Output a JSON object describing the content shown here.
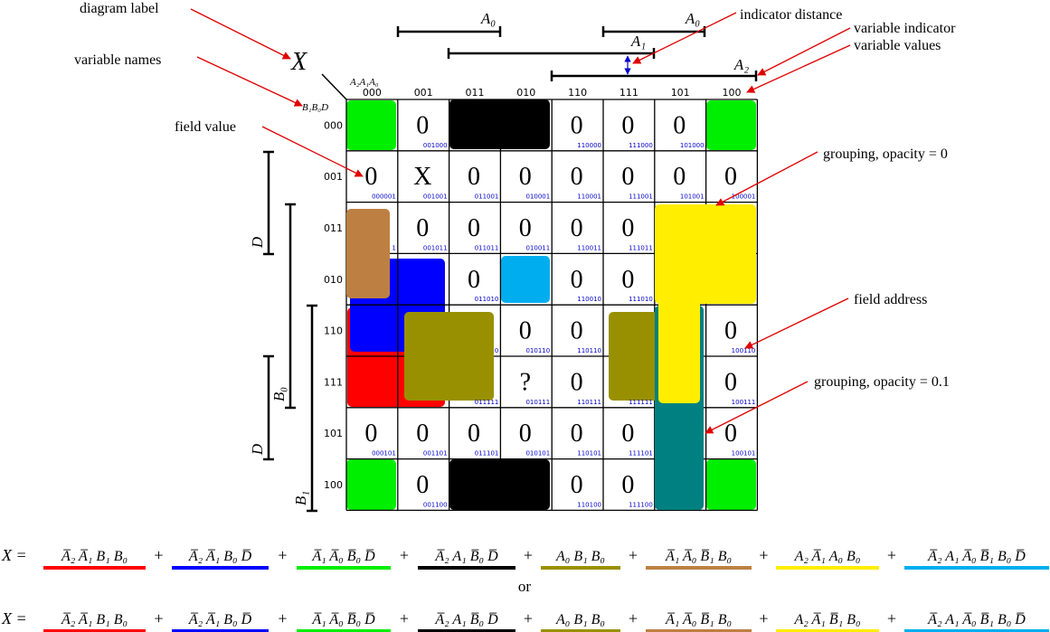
{
  "diagram_label": "X",
  "top_vars": "A₂A₁A₀",
  "left_vars": "B₁B₀D",
  "col_headers": [
    "000",
    "001",
    "011",
    "010",
    "110",
    "111",
    "101",
    "100"
  ],
  "row_headers": [
    "000",
    "001",
    "011",
    "010",
    "110",
    "111",
    "101",
    "100"
  ],
  "cells": [
    [
      "",
      "0",
      "",
      "",
      "0",
      "0",
      "0",
      ""
    ],
    [
      "0",
      "X",
      "0",
      "0",
      "0",
      "0",
      "0",
      "0"
    ],
    [
      "",
      "0",
      "0",
      "0",
      "0",
      "0",
      "",
      ""
    ],
    [
      "",
      "",
      "0",
      "",
      "0",
      "0",
      "",
      ""
    ],
    [
      "",
      "",
      "",
      "0",
      "0",
      "",
      "",
      "0"
    ],
    [
      "",
      "",
      "",
      "?",
      "0",
      "",
      "",
      "0"
    ],
    [
      "0",
      "0",
      "0",
      "0",
      "0",
      "0",
      "",
      "0"
    ],
    [
      "",
      "0",
      "",
      "",
      "0",
      "0",
      "",
      ""
    ]
  ],
  "addresses": [
    [
      "",
      "001000",
      "",
      "",
      "110000",
      "111000",
      "101000",
      ""
    ],
    [
      "000001",
      "001001",
      "011001",
      "010001",
      "110001",
      "111001",
      "101001",
      "100001"
    ],
    [
      "1",
      "001011",
      "011011",
      "010011",
      "110011",
      "111011",
      "",
      ""
    ],
    [
      "",
      "",
      "011010",
      "",
      "110010",
      "111010",
      "",
      ""
    ],
    [
      "",
      "",
      "0",
      "010110",
      "110110",
      "",
      "",
      "100110"
    ],
    [
      "",
      "",
      "011111",
      "010111",
      "110111",
      "111111",
      "",
      "100111"
    ],
    [
      "000101",
      "001101",
      "011101",
      "010101",
      "110101",
      "111101",
      "",
      "100101"
    ],
    [
      "",
      "001100",
      "",
      "",
      "110100",
      "111100",
      "",
      ""
    ]
  ],
  "indicators": {
    "top": [
      {
        "name": "A₀",
        "sub": "0"
      },
      {
        "name": "A₀",
        "sub": "0"
      },
      {
        "name": "A₁",
        "sub": "1"
      },
      {
        "name": "A₂",
        "sub": "2"
      }
    ],
    "left": [
      {
        "name": "D"
      },
      {
        "name": "B₀"
      },
      {
        "name": "D"
      },
      {
        "name": "B₁"
      }
    ]
  },
  "annotations": {
    "diagram_label": "diagram label",
    "variable_names": "variable names",
    "field_value": "field value",
    "indicator_distance": "indicator distance",
    "variable_indicator": "variable indicator",
    "variable_values": "variable values",
    "grouping_opacity_0": "grouping, opacity = 0",
    "field_address": "field address",
    "grouping_opacity_01": "grouping, opacity = 0.1"
  },
  "colors": {
    "red": "#ff0000",
    "blue": "#0000ff",
    "green": "#00ee00",
    "black": "#000000",
    "olive": "#999000",
    "brown": "#bd8042",
    "yellow": "#ffee00",
    "cyan": "#00aeef",
    "teal": "#008080",
    "arrow": "#e00000",
    "address": "#0000cc"
  },
  "formula_separator": "or",
  "formulas": [
    {
      "lhs": "X =",
      "terms": [
        {
          "color": "red",
          "text": "A̅₂ A̅₁ B₁ B₀"
        },
        {
          "color": "blue",
          "text": "A̅₂ A̅₁ B₀ D̅"
        },
        {
          "color": "green",
          "text": "A̅₁ A̅₀ B̅₀ D̅"
        },
        {
          "color": "black",
          "text": "A̅₂ A₁ B̅₀ D̅"
        },
        {
          "color": "olive",
          "text": "A₀ B₁ B₀"
        },
        {
          "color": "brown",
          "text": "A̅₁ A̅₀ B̅₁ B₀"
        },
        {
          "color": "yellow",
          "text": "A₂ A̅₁ A₀ B₀"
        },
        {
          "color": "cyan",
          "text": "A̅₂ A₁ A̅₀ B̅₁ B₀ D̅"
        }
      ]
    },
    {
      "lhs": "X =",
      "terms": [
        {
          "color": "red",
          "text": "A̅₂ A̅₁ B₁ B₀"
        },
        {
          "color": "blue",
          "text": "A̅₂ A̅₁ B₀ D̅"
        },
        {
          "color": "green",
          "text": "A̅₁ A̅₀ B̅₀ D̅"
        },
        {
          "color": "black",
          "text": "A̅₂ A₁ B̅₀ D̅"
        },
        {
          "color": "olive",
          "text": "A₀ B₁ B₀"
        },
        {
          "color": "brown",
          "text": "A̅₁ A̅₀ B̅₁ B₀"
        },
        {
          "color": "yellow",
          "text": "A₂ A̅₁ B̅₁ B₀"
        },
        {
          "color": "cyan",
          "text": "A̅₂ A₁ A̅₀ B̅₁ B₀ D̅"
        }
      ]
    }
  ]
}
